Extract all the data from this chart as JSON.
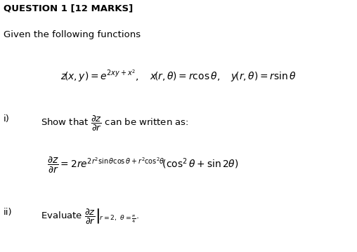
{
  "background_color": "#ffffff",
  "title_text": "QUESTION 1 [12 MARKS]",
  "intro_text": "Given the following functions",
  "part_i_label": "i)",
  "part_ii_label": "ii)",
  "font_size_title": 9.5,
  "font_size_body": 9.5,
  "font_size_math": 10,
  "font_size_math_sm": 9
}
